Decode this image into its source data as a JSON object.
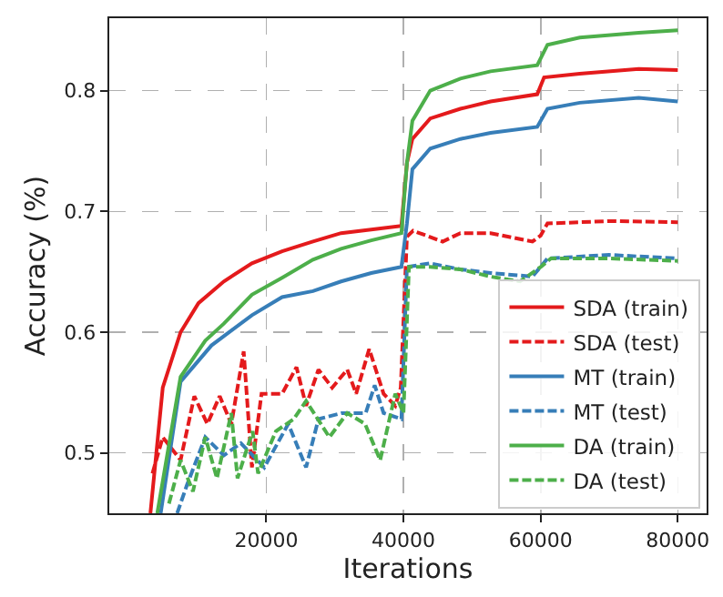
{
  "chart_data": {
    "type": "line",
    "xlabel": "Iterations",
    "ylabel": "Accuracy (%)",
    "xlim": [
      -2900,
      84200
    ],
    "ylim": [
      0.45,
      0.86
    ],
    "xticks": [
      20000,
      40000,
      60000,
      80000
    ],
    "yticks": [
      0.5,
      0.6,
      0.7,
      0.8
    ],
    "grid": true,
    "legend": "bottom right",
    "marker": "none",
    "series": [
      {
        "name": "SDA (train)",
        "color": "#e41a1c",
        "line_style": "solid",
        "x": [
          3100,
          4900,
          7500,
          10100,
          13800,
          17900,
          22300,
          26800,
          30900,
          35300,
          39700,
          40500,
          41300,
          43900,
          48300,
          52700,
          59500,
          60500,
          65700,
          74300,
          80000
        ],
        "values": [
          0.45,
          0.554,
          0.6,
          0.624,
          0.642,
          0.657,
          0.667,
          0.675,
          0.682,
          0.685,
          0.688,
          0.74,
          0.76,
          0.777,
          0.785,
          0.791,
          0.797,
          0.811,
          0.814,
          0.818,
          0.817
        ]
      },
      {
        "name": "SDA (test)",
        "color": "#e41a1c",
        "line_style": "dashed",
        "x": [
          3400,
          4900,
          7500,
          9500,
          11400,
          13200,
          14900,
          16700,
          17900,
          19300,
          22300,
          24400,
          25800,
          27600,
          29600,
          31800,
          33100,
          35000,
          37100,
          38800,
          39600,
          40500,
          41400,
          45700,
          48300,
          52700,
          58800,
          60000,
          61000,
          70000,
          80000
        ],
        "values": [
          0.483,
          0.513,
          0.494,
          0.547,
          0.524,
          0.547,
          0.524,
          0.584,
          0.488,
          0.549,
          0.549,
          0.571,
          0.539,
          0.569,
          0.554,
          0.569,
          0.549,
          0.586,
          0.549,
          0.539,
          0.554,
          0.679,
          0.684,
          0.675,
          0.682,
          0.682,
          0.675,
          0.68,
          0.69,
          0.692,
          0.691
        ]
      },
      {
        "name": "MT (train)",
        "color": "#377eb8",
        "line_style": "solid",
        "x": [
          4600,
          7500,
          12000,
          17900,
          22300,
          26800,
          30900,
          35300,
          39700,
          40500,
          41300,
          43900,
          48300,
          52700,
          59500,
          61000,
          65700,
          74300,
          80000
        ],
        "values": [
          0.45,
          0.559,
          0.589,
          0.614,
          0.629,
          0.634,
          0.642,
          0.649,
          0.654,
          0.69,
          0.735,
          0.752,
          0.76,
          0.765,
          0.77,
          0.785,
          0.79,
          0.794,
          0.791
        ]
      },
      {
        "name": "MT (test)",
        "color": "#377eb8",
        "line_style": "dashed",
        "x": [
          7000,
          8400,
          11100,
          13800,
          16300,
          19700,
          23200,
          25800,
          27600,
          31000,
          34500,
          35800,
          37100,
          39700,
          40500,
          43900,
          48300,
          52700,
          58800,
          61000,
          70000,
          80000
        ],
        "values": [
          0.45,
          0.473,
          0.513,
          0.498,
          0.508,
          0.488,
          0.524,
          0.488,
          0.528,
          0.533,
          0.533,
          0.556,
          0.533,
          0.528,
          0.654,
          0.657,
          0.652,
          0.649,
          0.646,
          0.661,
          0.664,
          0.661
        ]
      },
      {
        "name": "DA (train)",
        "color": "#4daf4a",
        "line_style": "solid",
        "x": [
          4100,
          7500,
          11100,
          13800,
          17900,
          22300,
          26800,
          30900,
          35300,
          39700,
          40500,
          41300,
          43900,
          48300,
          52700,
          59500,
          61000,
          65700,
          74300,
          80000
        ],
        "values": [
          0.45,
          0.563,
          0.593,
          0.607,
          0.631,
          0.645,
          0.66,
          0.669,
          0.676,
          0.682,
          0.74,
          0.775,
          0.8,
          0.81,
          0.816,
          0.821,
          0.838,
          0.844,
          0.848,
          0.85
        ]
      },
      {
        "name": "DA (test)",
        "color": "#4daf4a",
        "line_style": "dashed",
        "x": [
          5800,
          7500,
          9300,
          11100,
          12800,
          14900,
          15800,
          18000,
          18800,
          21400,
          24000,
          25800,
          29200,
          31800,
          34400,
          36600,
          38800,
          40000,
          40800,
          43900,
          48300,
          52700,
          57000,
          60000,
          61500,
          70000,
          80000
        ],
        "values": [
          0.458,
          0.494,
          0.468,
          0.513,
          0.479,
          0.533,
          0.479,
          0.518,
          0.483,
          0.518,
          0.528,
          0.543,
          0.513,
          0.533,
          0.524,
          0.494,
          0.549,
          0.533,
          0.654,
          0.654,
          0.652,
          0.646,
          0.642,
          0.654,
          0.661,
          0.661,
          0.659
        ]
      }
    ]
  }
}
